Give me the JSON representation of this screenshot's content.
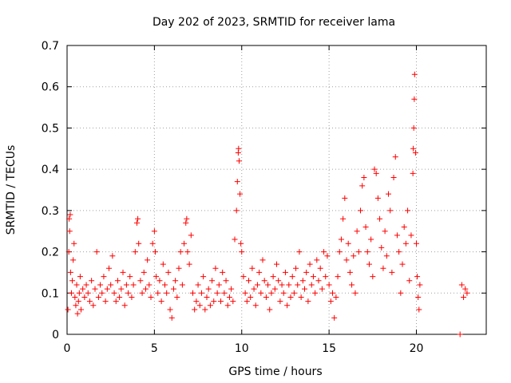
{
  "chart_data": {
    "type": "scatter",
    "title": "Day 202 of 2023, SRMTID for receiver lama",
    "xlabel": "GPS time / hours",
    "ylabel": "SRMTID / TECUs",
    "xlim": [
      0,
      24
    ],
    "ylim": [
      0,
      0.7
    ],
    "xticks": [
      0,
      5,
      10,
      15,
      20
    ],
    "xtick_labels": [
      "0",
      "5",
      "10",
      "15",
      "20"
    ],
    "yticks": [
      0,
      0.1,
      0.2,
      0.3,
      0.4,
      0.5,
      0.6,
      0.7
    ],
    "ytick_labels": [
      "0",
      "0.1",
      "0.2",
      "0.3",
      "0.4",
      "0.5",
      "0.6",
      "0.7"
    ],
    "grid": true,
    "marker": "+",
    "color": "#ff0000",
    "series": [
      {
        "name": "SRMTID",
        "points": [
          [
            0.05,
            0.06
          ],
          [
            0.1,
            0.2
          ],
          [
            0.12,
            0.28
          ],
          [
            0.15,
            0.25
          ],
          [
            0.18,
            0.29
          ],
          [
            0.2,
            0.15
          ],
          [
            0.25,
            0.1
          ],
          [
            0.3,
            0.13
          ],
          [
            0.35,
            0.18
          ],
          [
            0.4,
            0.22
          ],
          [
            0.45,
            0.09
          ],
          [
            0.5,
            0.07
          ],
          [
            0.55,
            0.12
          ],
          [
            0.6,
            0.05
          ],
          [
            0.65,
            0.08
          ],
          [
            0.7,
            0.1
          ],
          [
            0.75,
            0.14
          ],
          [
            0.8,
            0.06
          ],
          [
            0.9,
            0.11
          ],
          [
            1.0,
            0.09
          ],
          [
            1.1,
            0.12
          ],
          [
            1.2,
            0.1
          ],
          [
            1.3,
            0.08
          ],
          [
            1.4,
            0.13
          ],
          [
            1.5,
            0.07
          ],
          [
            1.6,
            0.11
          ],
          [
            1.7,
            0.2
          ],
          [
            1.8,
            0.09
          ],
          [
            1.9,
            0.12
          ],
          [
            2.0,
            0.1
          ],
          [
            2.1,
            0.14
          ],
          [
            2.2,
            0.08
          ],
          [
            2.3,
            0.11
          ],
          [
            2.4,
            0.16
          ],
          [
            2.5,
            0.12
          ],
          [
            2.6,
            0.19
          ],
          [
            2.7,
            0.1
          ],
          [
            2.8,
            0.08
          ],
          [
            2.9,
            0.13
          ],
          [
            3.0,
            0.09
          ],
          [
            3.1,
            0.11
          ],
          [
            3.2,
            0.15
          ],
          [
            3.3,
            0.07
          ],
          [
            3.4,
            0.12
          ],
          [
            3.5,
            0.1
          ],
          [
            3.6,
            0.14
          ],
          [
            3.7,
            0.09
          ],
          [
            3.8,
            0.12
          ],
          [
            3.9,
            0.2
          ],
          [
            4.0,
            0.27
          ],
          [
            4.05,
            0.28
          ],
          [
            4.1,
            0.22
          ],
          [
            4.2,
            0.13
          ],
          [
            4.3,
            0.1
          ],
          [
            4.4,
            0.15
          ],
          [
            4.5,
            0.11
          ],
          [
            4.6,
            0.18
          ],
          [
            4.7,
            0.12
          ],
          [
            4.8,
            0.09
          ],
          [
            4.9,
            0.22
          ],
          [
            5.0,
            0.25
          ],
          [
            5.05,
            0.2
          ],
          [
            5.1,
            0.14
          ],
          [
            5.2,
            0.1
          ],
          [
            5.3,
            0.13
          ],
          [
            5.4,
            0.08
          ],
          [
            5.5,
            0.17
          ],
          [
            5.6,
            0.12
          ],
          [
            5.7,
            0.1
          ],
          [
            5.8,
            0.15
          ],
          [
            5.9,
            0.06
          ],
          [
            6.0,
            0.04
          ],
          [
            6.1,
            0.11
          ],
          [
            6.2,
            0.13
          ],
          [
            6.3,
            0.09
          ],
          [
            6.4,
            0.16
          ],
          [
            6.5,
            0.2
          ],
          [
            6.6,
            0.12
          ],
          [
            6.7,
            0.22
          ],
          [
            6.8,
            0.27
          ],
          [
            6.85,
            0.28
          ],
          [
            6.9,
            0.2
          ],
          [
            7.0,
            0.17
          ],
          [
            7.1,
            0.24
          ],
          [
            7.2,
            0.1
          ],
          [
            7.3,
            0.06
          ],
          [
            7.4,
            0.08
          ],
          [
            7.5,
            0.12
          ],
          [
            7.6,
            0.07
          ],
          [
            7.7,
            0.1
          ],
          [
            7.8,
            0.14
          ],
          [
            7.9,
            0.06
          ],
          [
            8.0,
            0.09
          ],
          [
            8.1,
            0.11
          ],
          [
            8.2,
            0.07
          ],
          [
            8.3,
            0.13
          ],
          [
            8.4,
            0.08
          ],
          [
            8.5,
            0.16
          ],
          [
            8.6,
            0.1
          ],
          [
            8.7,
            0.12
          ],
          [
            8.8,
            0.08
          ],
          [
            8.9,
            0.15
          ],
          [
            9.0,
            0.1
          ],
          [
            9.1,
            0.13
          ],
          [
            9.2,
            0.07
          ],
          [
            9.3,
            0.09
          ],
          [
            9.4,
            0.11
          ],
          [
            9.5,
            0.08
          ],
          [
            9.6,
            0.23
          ],
          [
            9.7,
            0.3
          ],
          [
            9.75,
            0.37
          ],
          [
            9.8,
            0.44
          ],
          [
            9.82,
            0.45
          ],
          [
            9.85,
            0.42
          ],
          [
            9.9,
            0.34
          ],
          [
            9.95,
            0.22
          ],
          [
            10.0,
            0.2
          ],
          [
            10.1,
            0.14
          ],
          [
            10.2,
            0.1
          ],
          [
            10.3,
            0.08
          ],
          [
            10.4,
            0.13
          ],
          [
            10.5,
            0.09
          ],
          [
            10.6,
            0.16
          ],
          [
            10.7,
            0.11
          ],
          [
            10.8,
            0.07
          ],
          [
            10.9,
            0.12
          ],
          [
            11.0,
            0.15
          ],
          [
            11.1,
            0.1
          ],
          [
            11.2,
            0.18
          ],
          [
            11.3,
            0.13
          ],
          [
            11.4,
            0.09
          ],
          [
            11.5,
            0.12
          ],
          [
            11.6,
            0.06
          ],
          [
            11.7,
            0.1
          ],
          [
            11.8,
            0.14
          ],
          [
            11.9,
            0.11
          ],
          [
            12.0,
            0.17
          ],
          [
            12.1,
            0.13
          ],
          [
            12.2,
            0.08
          ],
          [
            12.3,
            0.12
          ],
          [
            12.4,
            0.1
          ],
          [
            12.5,
            0.15
          ],
          [
            12.6,
            0.07
          ],
          [
            12.7,
            0.12
          ],
          [
            12.8,
            0.09
          ],
          [
            12.9,
            0.14
          ],
          [
            13.0,
            0.1
          ],
          [
            13.1,
            0.16
          ],
          [
            13.2,
            0.12
          ],
          [
            13.3,
            0.2
          ],
          [
            13.4,
            0.09
          ],
          [
            13.5,
            0.13
          ],
          [
            13.6,
            0.11
          ],
          [
            13.7,
            0.15
          ],
          [
            13.8,
            0.08
          ],
          [
            13.9,
            0.17
          ],
          [
            14.0,
            0.12
          ],
          [
            14.1,
            0.14
          ],
          [
            14.2,
            0.1
          ],
          [
            14.3,
            0.18
          ],
          [
            14.4,
            0.13
          ],
          [
            14.5,
            0.16
          ],
          [
            14.6,
            0.11
          ],
          [
            14.7,
            0.2
          ],
          [
            14.8,
            0.14
          ],
          [
            14.9,
            0.19
          ],
          [
            15.0,
            0.12
          ],
          [
            15.1,
            0.08
          ],
          [
            15.2,
            0.1
          ],
          [
            15.3,
            0.04
          ],
          [
            15.4,
            0.09
          ],
          [
            15.5,
            0.14
          ],
          [
            15.6,
            0.2
          ],
          [
            15.7,
            0.23
          ],
          [
            15.8,
            0.28
          ],
          [
            15.9,
            0.33
          ],
          [
            16.0,
            0.18
          ],
          [
            16.1,
            0.22
          ],
          [
            16.2,
            0.15
          ],
          [
            16.3,
            0.12
          ],
          [
            16.4,
            0.19
          ],
          [
            16.5,
            0.1
          ],
          [
            16.6,
            0.25
          ],
          [
            16.7,
            0.2
          ],
          [
            16.8,
            0.3
          ],
          [
            16.9,
            0.36
          ],
          [
            17.0,
            0.38
          ],
          [
            17.1,
            0.26
          ],
          [
            17.2,
            0.2
          ],
          [
            17.3,
            0.17
          ],
          [
            17.4,
            0.23
          ],
          [
            17.5,
            0.14
          ],
          [
            17.6,
            0.4
          ],
          [
            17.7,
            0.39
          ],
          [
            17.8,
            0.33
          ],
          [
            17.9,
            0.28
          ],
          [
            18.0,
            0.21
          ],
          [
            18.1,
            0.16
          ],
          [
            18.2,
            0.25
          ],
          [
            18.3,
            0.19
          ],
          [
            18.4,
            0.34
          ],
          [
            18.5,
            0.3
          ],
          [
            18.6,
            0.15
          ],
          [
            18.7,
            0.38
          ],
          [
            18.8,
            0.43
          ],
          [
            18.9,
            0.24
          ],
          [
            19.0,
            0.2
          ],
          [
            19.1,
            0.1
          ],
          [
            19.2,
            0.17
          ],
          [
            19.3,
            0.26
          ],
          [
            19.4,
            0.22
          ],
          [
            19.5,
            0.3
          ],
          [
            19.6,
            0.13
          ],
          [
            19.7,
            0.24
          ],
          [
            19.8,
            0.39
          ],
          [
            19.82,
            0.45
          ],
          [
            19.85,
            0.5
          ],
          [
            19.88,
            0.57
          ],
          [
            19.9,
            0.63
          ],
          [
            19.95,
            0.44
          ],
          [
            20.0,
            0.22
          ],
          [
            20.05,
            0.14
          ],
          [
            20.1,
            0.09
          ],
          [
            20.15,
            0.06
          ],
          [
            20.2,
            0.12
          ],
          [
            22.5,
            0.0
          ],
          [
            22.6,
            0.12
          ],
          [
            22.7,
            0.09
          ],
          [
            22.8,
            0.11
          ],
          [
            22.9,
            0.1
          ]
        ]
      }
    ]
  }
}
